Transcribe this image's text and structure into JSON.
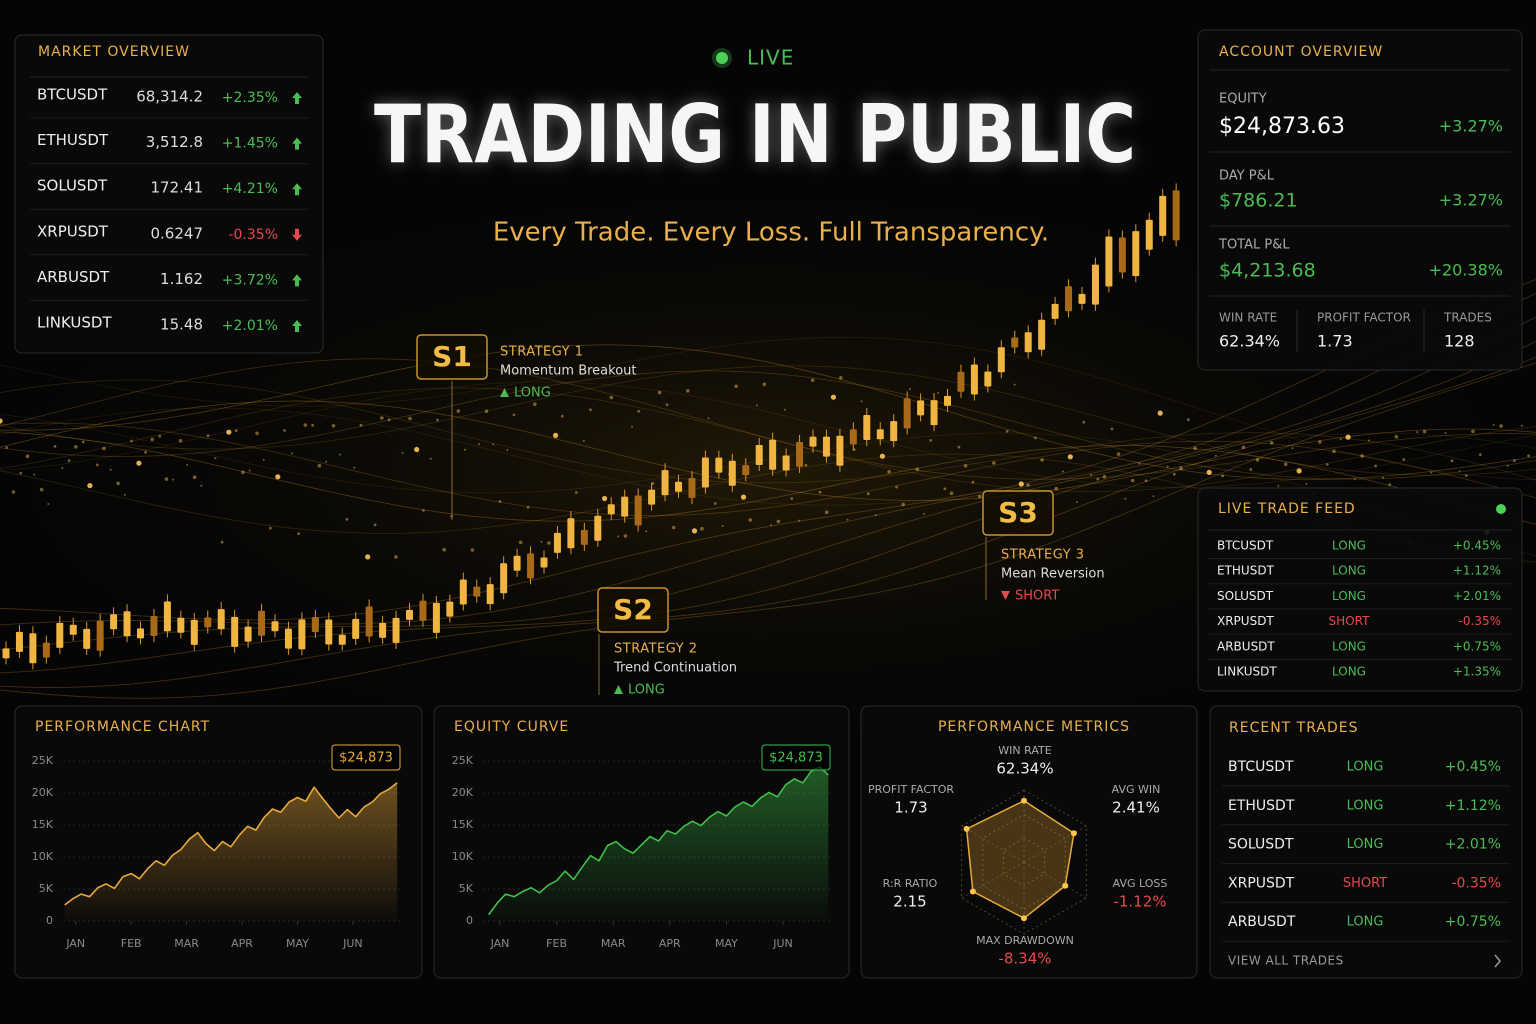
{
  "live": "LIVE",
  "header": {
    "title": "TRADING IN PUBLIC",
    "subtitle": "Every Trade. Every Loss. Full Transparency."
  },
  "market_overview": {
    "title": "MARKET OVERVIEW",
    "rows": [
      {
        "symbol": "BTCUSDT",
        "price": "68,314.2",
        "change": "+2.35%"
      },
      {
        "symbol": "ETHUSDT",
        "price": "3,512.8",
        "change": "+1.45%"
      },
      {
        "symbol": "SOLUSDT",
        "price": "172.41",
        "change": "+4.21%"
      },
      {
        "symbol": "XRPUSDT",
        "price": "0.6247",
        "change": "-0.35%"
      },
      {
        "symbol": "ARBUSDT",
        "price": "1.162",
        "change": "+3.72%"
      },
      {
        "symbol": "LINKUSDT",
        "price": "15.48",
        "change": "+2.01%"
      }
    ]
  },
  "account_overview": {
    "title": "ACCOUNT OVERVIEW",
    "equity": {
      "label": "EQUITY",
      "value": "$24,873.63",
      "change": "+3.27%"
    },
    "day_pnl": {
      "label": "DAY P&L",
      "value": "$786.21",
      "change": "+3.27%"
    },
    "total_pnl": {
      "label": "TOTAL P&L",
      "value": "$4,213.68",
      "change": "+20.38%"
    },
    "stats": [
      {
        "label": "WIN RATE",
        "value": "62.34%"
      },
      {
        "label": "PROFIT FACTOR",
        "value": "1.73"
      },
      {
        "label": "TRADES",
        "value": "128"
      }
    ]
  },
  "strategies": [
    {
      "badge": "S1",
      "name": "STRATEGY 1",
      "description": "Momentum Breakout",
      "side": "LONG",
      "side_color": "#4cbb55"
    },
    {
      "badge": "S2",
      "name": "STRATEGY 2",
      "description": "Trend Continuation",
      "side": "LONG",
      "side_color": "#4cbb55"
    },
    {
      "badge": "S3",
      "name": "STRATEGY 3",
      "description": "Mean Reversion",
      "side": "SHORT",
      "side_color": "#e5484d"
    }
  ],
  "live_trade_feed": {
    "title": "LIVE TRADE FEED",
    "rows": [
      {
        "symbol": "BTCUSDT",
        "side": "LONG",
        "change": "+0.45%"
      },
      {
        "symbol": "ETHUSDT",
        "side": "LONG",
        "change": "+1.12%"
      },
      {
        "symbol": "SOLUSDT",
        "side": "LONG",
        "change": "+2.01%"
      },
      {
        "symbol": "XRPUSDT",
        "side": "SHORT",
        "change": "-0.35%"
      },
      {
        "symbol": "ARBUSDT",
        "side": "LONG",
        "change": "+0.75%"
      },
      {
        "symbol": "LINKUSDT",
        "side": "LONG",
        "change": "+1.35%"
      }
    ]
  },
  "recent_trades": {
    "title": "RECENT TRADES",
    "footer": "VIEW ALL TRADES",
    "rows": [
      {
        "symbol": "BTCUSDT",
        "side": "LONG",
        "change": "+0.45%"
      },
      {
        "symbol": "ETHUSDT",
        "side": "LONG",
        "change": "+1.12%"
      },
      {
        "symbol": "SOLUSDT",
        "side": "LONG",
        "change": "+2.01%"
      },
      {
        "symbol": "XRPUSDT",
        "side": "SHORT",
        "change": "-0.35%"
      },
      {
        "symbol": "ARBUSDT",
        "side": "LONG",
        "change": "+0.75%"
      }
    ]
  },
  "chart_data": [
    {
      "type": "area",
      "title": "PERFORMANCE CHART",
      "badge": "$24,873",
      "color": "#e8a93a",
      "grid": true,
      "x": [
        -0.2,
        -0.05,
        0.1,
        0.25,
        0.4,
        0.55,
        0.7,
        0.85,
        1.0,
        1.15,
        1.3,
        1.45,
        1.6,
        1.75,
        1.9,
        2.05,
        2.2,
        2.35,
        2.5,
        2.65,
        2.8,
        2.95,
        3.1,
        3.25,
        3.4,
        3.55,
        3.7,
        3.85,
        4.0,
        4.15,
        4.3,
        4.45,
        4.6,
        4.75,
        4.9,
        5.05,
        5.2,
        5.35,
        5.5,
        5.65,
        5.8
      ],
      "values": [
        2500,
        3500,
        4200,
        3800,
        5200,
        5800,
        5100,
        6900,
        7400,
        6600,
        8200,
        9400,
        8700,
        10300,
        11200,
        12800,
        13800,
        12100,
        11000,
        12400,
        11600,
        13400,
        14800,
        14200,
        16200,
        17500,
        17000,
        18600,
        19300,
        18700,
        20900,
        19200,
        17600,
        16100,
        17400,
        16300,
        17800,
        18600,
        19900,
        20600,
        21600
      ],
      "xlim": [
        -0.23,
        5.85
      ],
      "ylim": [
        0,
        25000
      ],
      "xticks": [
        {
          "value": 0,
          "label": "JAN"
        },
        {
          "value": 1,
          "label": "FEB"
        },
        {
          "value": 2,
          "label": "MAR"
        },
        {
          "value": 3,
          "label": "APR"
        },
        {
          "value": 4,
          "label": "MAY"
        },
        {
          "value": 5,
          "label": "JUN"
        }
      ],
      "yticks": [
        0,
        {
          "value": 5000,
          "label": "5K"
        },
        {
          "value": 10000,
          "label": "10K"
        },
        {
          "value": 15000,
          "label": "15K"
        },
        {
          "value": 20000,
          "label": "20K"
        },
        {
          "value": 25000,
          "label": "25K"
        }
      ]
    },
    {
      "type": "area",
      "title": "EQUITY CURVE",
      "badge": "$24,873",
      "color": "#3fbf4a",
      "grid": true,
      "x": [
        -0.2,
        -0.05,
        0.1,
        0.25,
        0.4,
        0.55,
        0.7,
        0.85,
        1.0,
        1.15,
        1.3,
        1.45,
        1.6,
        1.75,
        1.9,
        2.05,
        2.2,
        2.35,
        2.5,
        2.65,
        2.8,
        2.95,
        3.1,
        3.25,
        3.4,
        3.55,
        3.7,
        3.85,
        4.0,
        4.15,
        4.3,
        4.45,
        4.6,
        4.75,
        4.9,
        5.05,
        5.2,
        5.35,
        5.5,
        5.65,
        5.8
      ],
      "values": [
        1000,
        2800,
        4200,
        3800,
        4600,
        5200,
        4400,
        5600,
        6300,
        7800,
        6500,
        8400,
        10200,
        9400,
        11800,
        12400,
        11300,
        10600,
        11900,
        13200,
        12500,
        14100,
        13600,
        14800,
        15600,
        14900,
        16200,
        17100,
        16400,
        17800,
        18600,
        17900,
        19200,
        20100,
        19400,
        21300,
        22200,
        21600,
        23400,
        24100,
        22800
      ],
      "xlim": [
        -0.3,
        5.83
      ],
      "ylim": [
        0,
        25000
      ],
      "xticks": [
        {
          "value": 0,
          "label": "JAN"
        },
        {
          "value": 1,
          "label": "FEB"
        },
        {
          "value": 2,
          "label": "MAR"
        },
        {
          "value": 3,
          "label": "APR"
        },
        {
          "value": 4,
          "label": "MAY"
        },
        {
          "value": 5,
          "label": "JUN"
        }
      ],
      "yticks": [
        0,
        {
          "value": 5000,
          "label": "5K"
        },
        {
          "value": 10000,
          "label": "10K"
        },
        {
          "value": 15000,
          "label": "15K"
        },
        {
          "value": 20000,
          "label": "20K"
        },
        {
          "value": 25000,
          "label": "25K"
        }
      ]
    },
    {
      "type": "radar",
      "title": "PERFORMANCE METRICS",
      "color": "#e8a93a",
      "rlim": [
        0,
        1
      ],
      "axes": [
        {
          "label": "WIN RATE",
          "metric": "62.34%",
          "score": 0.85
        },
        {
          "label": "AVG WIN",
          "metric": "2.41%",
          "score": 0.8
        },
        {
          "label": "AVG LOSS",
          "metric": "-1.12%",
          "score": 0.66
        },
        {
          "label": "MAX DRAWDOWN",
          "metric": "-8.34%",
          "score": 0.78
        },
        {
          "label": "R:R RATIO",
          "metric": "2.15",
          "score": 0.82
        },
        {
          "label": "PROFIT FACTOR",
          "metric": "1.73",
          "score": 0.92
        }
      ]
    }
  ]
}
